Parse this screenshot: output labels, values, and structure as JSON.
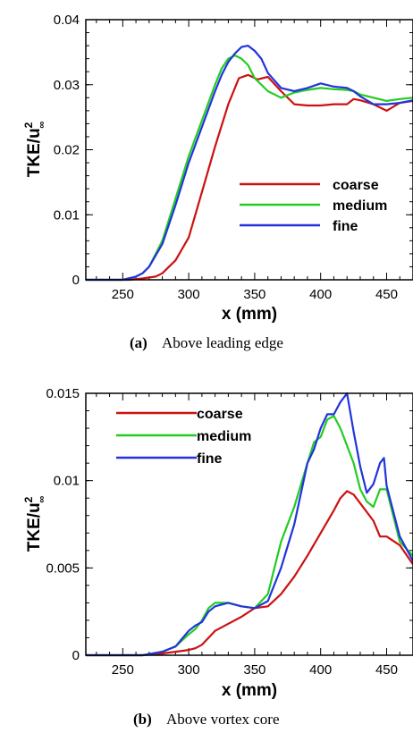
{
  "chart_data": [
    {
      "type": "line",
      "caption_letter": "(a)",
      "caption_text": "Above leading edge",
      "xlabel": "x (mm)",
      "ylabel_main": "TKE/u",
      "ylabel_sup": "2",
      "ylabel_sub": "∞",
      "xlim": [
        222,
        470
      ],
      "ylim": [
        0,
        0.04
      ],
      "xticks": [
        250,
        300,
        350,
        400,
        450
      ],
      "yticks": [
        0,
        0.01,
        0.02,
        0.03,
        0.04
      ],
      "ytick_labels": [
        "0",
        "0.01",
        "0.02",
        "0.03",
        "0.04"
      ],
      "legend_position": "center-right",
      "series": [
        {
          "name": "coarse",
          "color": "#cc1111",
          "x": [
            222,
            255,
            265,
            275,
            280,
            290,
            300,
            310,
            320,
            330,
            338,
            345,
            352,
            360,
            370,
            380,
            390,
            400,
            410,
            420,
            425,
            430,
            440,
            450,
            460,
            470
          ],
          "y": [
            0,
            0,
            0.0002,
            0.0005,
            0.001,
            0.003,
            0.0065,
            0.0135,
            0.0205,
            0.027,
            0.031,
            0.0315,
            0.0308,
            0.0312,
            0.029,
            0.027,
            0.0268,
            0.0268,
            0.027,
            0.027,
            0.0278,
            0.0276,
            0.027,
            0.026,
            0.0272,
            0.0275
          ]
        },
        {
          "name": "medium",
          "color": "#22cc22",
          "x": [
            222,
            250,
            255,
            260,
            265,
            270,
            280,
            290,
            300,
            310,
            320,
            325,
            330,
            335,
            340,
            345,
            350,
            360,
            370,
            380,
            390,
            400,
            410,
            420,
            425,
            430,
            440,
            450,
            460,
            470
          ],
          "y": [
            0,
            0,
            0.0002,
            0.0005,
            0.001,
            0.002,
            0.006,
            0.0125,
            0.019,
            0.0245,
            0.03,
            0.0325,
            0.034,
            0.0345,
            0.034,
            0.033,
            0.031,
            0.029,
            0.028,
            0.0288,
            0.0292,
            0.0295,
            0.0293,
            0.0292,
            0.029,
            0.0285,
            0.028,
            0.0275,
            0.0278,
            0.028
          ]
        },
        {
          "name": "fine",
          "color": "#2233dd",
          "x": [
            222,
            250,
            260,
            265,
            270,
            280,
            290,
            300,
            310,
            320,
            325,
            330,
            335,
            340,
            345,
            350,
            355,
            360,
            370,
            380,
            390,
            400,
            410,
            420,
            425,
            430,
            440,
            450,
            460,
            470
          ],
          "y": [
            0,
            0,
            0.0005,
            0.001,
            0.002,
            0.0055,
            0.0115,
            0.018,
            0.0235,
            0.029,
            0.0315,
            0.0335,
            0.0348,
            0.0358,
            0.036,
            0.0352,
            0.034,
            0.0318,
            0.0295,
            0.029,
            0.0295,
            0.0302,
            0.0297,
            0.0295,
            0.029,
            0.0282,
            0.027,
            0.027,
            0.0272,
            0.0276
          ]
        }
      ]
    },
    {
      "type": "line",
      "caption_letter": "(b)",
      "caption_text": "Above vortex core",
      "xlabel": "x (mm)",
      "ylabel_main": "TKE/u",
      "ylabel_sup": "2",
      "ylabel_sub": "∞",
      "xlim": [
        222,
        470
      ],
      "ylim": [
        0,
        0.015
      ],
      "xticks": [
        250,
        300,
        350,
        400,
        450
      ],
      "yticks": [
        0,
        0.005,
        0.01,
        0.015
      ],
      "ytick_labels": [
        "0",
        "0.005",
        "0.01",
        "0.015"
      ],
      "legend_position": "top-left",
      "series": [
        {
          "name": "coarse",
          "color": "#cc1111",
          "x": [
            222,
            265,
            280,
            290,
            300,
            305,
            310,
            315,
            320,
            330,
            340,
            350,
            360,
            370,
            380,
            390,
            400,
            410,
            415,
            420,
            425,
            430,
            440,
            445,
            450,
            460,
            470
          ],
          "y": [
            0,
            0,
            0.0001,
            0.0002,
            0.0003,
            0.0004,
            0.0006,
            0.001,
            0.0014,
            0.0018,
            0.0022,
            0.0027,
            0.0028,
            0.0035,
            0.0045,
            0.0057,
            0.007,
            0.0083,
            0.009,
            0.0094,
            0.0092,
            0.0087,
            0.0077,
            0.0068,
            0.0068,
            0.0063,
            0.0052
          ]
        },
        {
          "name": "medium",
          "color": "#22cc22",
          "x": [
            222,
            265,
            280,
            290,
            300,
            305,
            310,
            315,
            320,
            330,
            340,
            350,
            360,
            365,
            370,
            380,
            390,
            395,
            400,
            405,
            410,
            415,
            420,
            425,
            430,
            435,
            440,
            445,
            450,
            460,
            470
          ],
          "y": [
            0,
            0,
            0.0002,
            0.0005,
            0.0012,
            0.0015,
            0.002,
            0.0027,
            0.003,
            0.003,
            0.0028,
            0.0027,
            0.0035,
            0.005,
            0.0065,
            0.0085,
            0.011,
            0.0122,
            0.0125,
            0.0135,
            0.0137,
            0.013,
            0.012,
            0.011,
            0.0095,
            0.0088,
            0.0085,
            0.0095,
            0.0095,
            0.0065,
            0.0057
          ]
        },
        {
          "name": "fine",
          "color": "#2233dd",
          "x": [
            222,
            265,
            280,
            290,
            300,
            305,
            310,
            315,
            320,
            330,
            340,
            350,
            360,
            370,
            380,
            390,
            395,
            400,
            405,
            410,
            415,
            420,
            425,
            430,
            435,
            440,
            445,
            448,
            450,
            460,
            470
          ],
          "y": [
            0,
            0,
            0.0002,
            0.0005,
            0.0014,
            0.0017,
            0.0019,
            0.0025,
            0.0028,
            0.003,
            0.0028,
            0.0027,
            0.0031,
            0.005,
            0.0075,
            0.011,
            0.0118,
            0.013,
            0.0138,
            0.0138,
            0.0145,
            0.015,
            0.0128,
            0.0108,
            0.0093,
            0.0098,
            0.011,
            0.0113,
            0.0097,
            0.0068,
            0.0054
          ]
        }
      ]
    }
  ]
}
